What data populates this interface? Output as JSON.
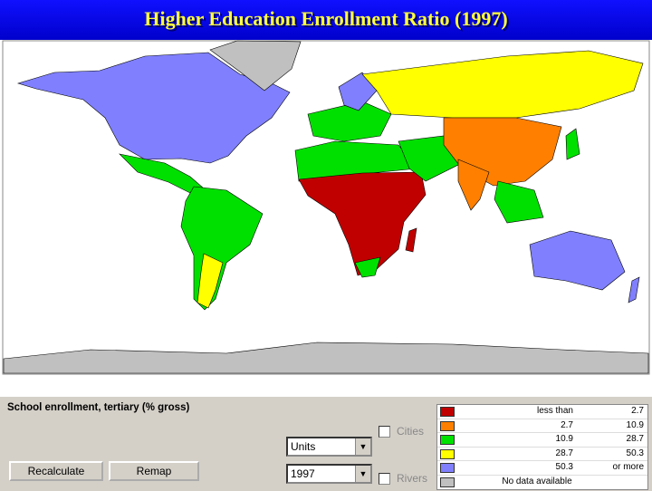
{
  "title": "Higher Education Enrollment Ratio (1997)",
  "panel": {
    "label": "School enrollment, tertiary (% gross)",
    "buttons": [
      "Recalculate",
      "Remap"
    ],
    "dropdowns": [
      "Units",
      "1997"
    ],
    "checkboxes": [
      "Cities",
      "Rivers"
    ]
  },
  "legend": {
    "rows": [
      {
        "color": "#c00000",
        "low": "less than",
        "high": 2.7
      },
      {
        "color": "#ff8000",
        "low": 2.7,
        "high": 10.9
      },
      {
        "color": "#00e000",
        "low": 10.9,
        "high": 28.7
      },
      {
        "color": "#ffff00",
        "low": 28.7,
        "high": 50.3
      },
      {
        "color": "#8080ff",
        "low": 50.3,
        "high": "or more"
      }
    ],
    "no_data": {
      "color": "#c0c0c0",
      "label": "No data available"
    }
  }
}
